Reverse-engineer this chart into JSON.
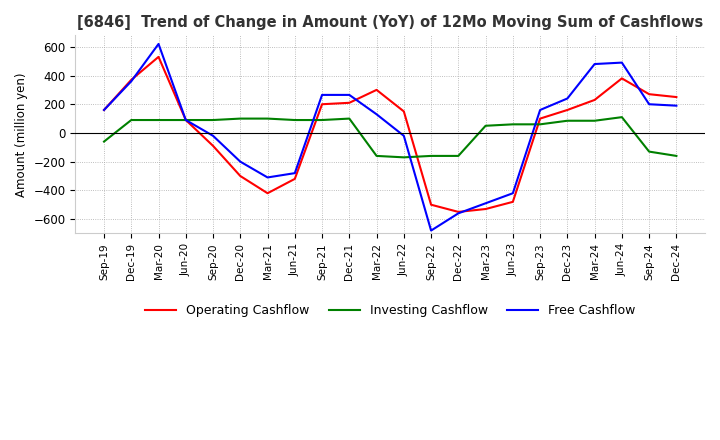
{
  "title": "[6846]  Trend of Change in Amount (YoY) of 12Mo Moving Sum of Cashflows",
  "ylabel": "Amount (million yen)",
  "ylim": [
    -700,
    680
  ],
  "yticks": [
    -600,
    -400,
    -200,
    0,
    200,
    400,
    600
  ],
  "x_labels": [
    "Sep-19",
    "Dec-19",
    "Mar-20",
    "Jun-20",
    "Sep-20",
    "Dec-20",
    "Mar-21",
    "Jun-21",
    "Sep-21",
    "Dec-21",
    "Mar-22",
    "Jun-22",
    "Sep-22",
    "Dec-22",
    "Mar-23",
    "Jun-23",
    "Sep-23",
    "Dec-23",
    "Mar-24",
    "Jun-24",
    "Sep-24",
    "Dec-24"
  ],
  "operating": [
    160,
    370,
    530,
    90,
    -90,
    -300,
    -420,
    -320,
    200,
    210,
    300,
    150,
    -500,
    -550,
    -530,
    -480,
    100,
    160,
    230,
    380,
    270,
    250
  ],
  "investing": [
    -60,
    90,
    90,
    90,
    90,
    100,
    100,
    90,
    90,
    100,
    -160,
    -170,
    -160,
    -160,
    50,
    60,
    60,
    85,
    85,
    110,
    -130,
    -160
  ],
  "free": [
    160,
    360,
    620,
    90,
    -20,
    -200,
    -310,
    -280,
    265,
    265,
    130,
    -20,
    -680,
    -560,
    -490,
    -420,
    160,
    240,
    480,
    490,
    200,
    190
  ],
  "line_colors": {
    "operating": "#ff0000",
    "investing": "#008000",
    "free": "#0000ff"
  },
  "legend_labels": [
    "Operating Cashflow",
    "Investing Cashflow",
    "Free Cashflow"
  ],
  "background_color": "#ffffff",
  "grid_color": "#aaaaaa"
}
